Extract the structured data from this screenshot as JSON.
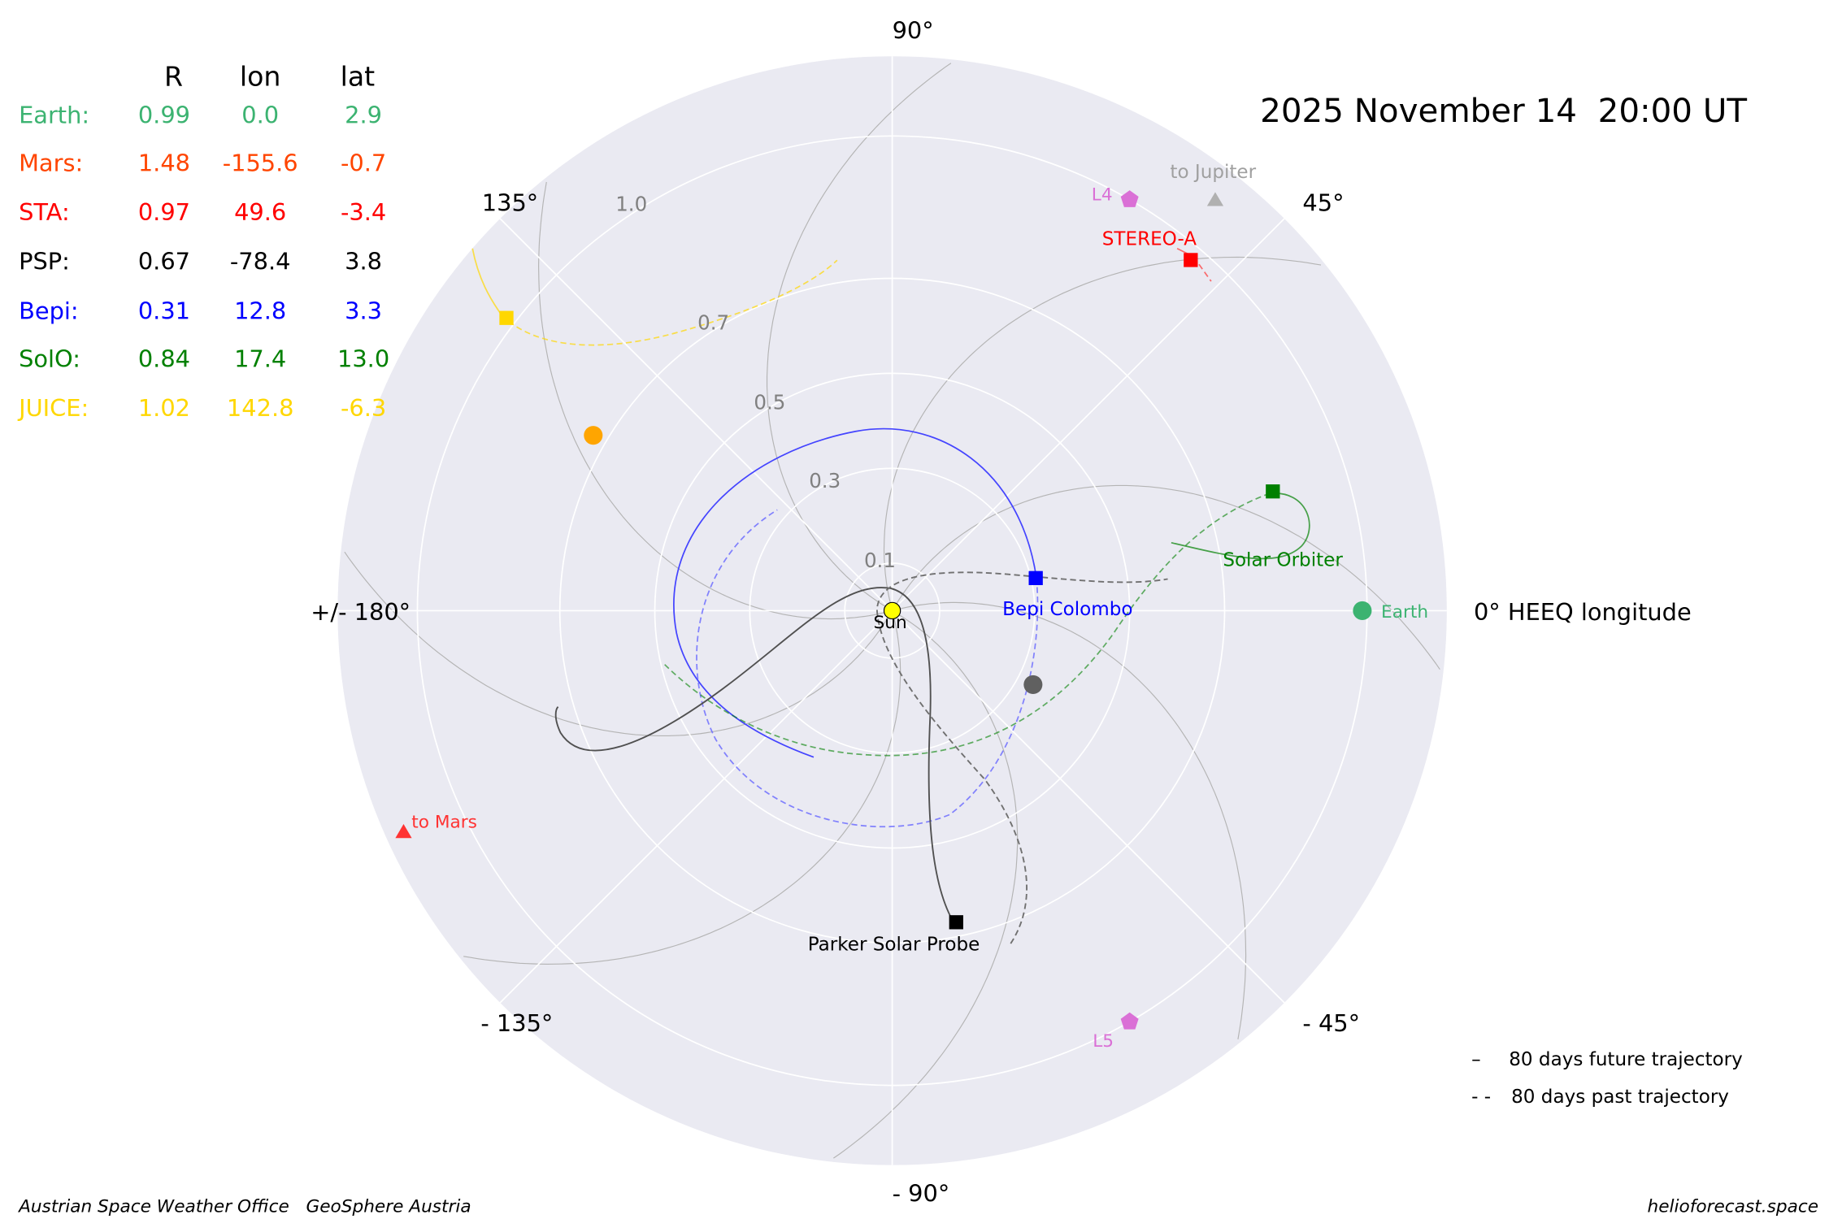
{
  "title": "2025 November 14  20:00 UT",
  "table": {
    "headers": [
      "R",
      "lon",
      "lat"
    ],
    "rows": [
      {
        "name": "Earth:",
        "R": "0.99",
        "lon": "0.0",
        "lat": "2.9",
        "color": "#3cb371"
      },
      {
        "name": "Mars:",
        "R": "1.48",
        "lon": "-155.6",
        "lat": "-0.7",
        "color": "#ff4500"
      },
      {
        "name": "STA:",
        "R": "0.97",
        "lon": "49.6",
        "lat": "-3.4",
        "color": "#ff0000"
      },
      {
        "name": "PSP:",
        "R": "0.67",
        "lon": "-78.4",
        "lat": "3.8",
        "color": "#000000"
      },
      {
        "name": "Bepi:",
        "R": "0.31",
        "lon": "12.8",
        "lat": "3.3",
        "color": "#0000ff"
      },
      {
        "name": "SolO:",
        "R": "0.84",
        "lon": "17.4",
        "lat": "13.0",
        "color": "#008000"
      },
      {
        "name": "JUICE:",
        "R": "1.02",
        "lon": "142.8",
        "lat": "-6.3",
        "color": "#ffd700"
      }
    ]
  },
  "chart_data": {
    "type": "scatter",
    "projection": "polar",
    "title": "2025 November 14  20:00 UT",
    "angle_labels": {
      "a90": "90°",
      "a45": "45°",
      "a0": "0° HEEQ longitude",
      "am45": "- 45°",
      "am90": "- 90°",
      "am135": "- 135°",
      "a180": "+/- 180°",
      "a135": "135°"
    },
    "r_ticks": [
      "0.1",
      "0.3",
      "0.5",
      "0.7",
      "1.0"
    ],
    "r_max": 1.17,
    "grid": true,
    "objects": {
      "sun": {
        "label": "Sun",
        "r": 0,
        "lon": 0,
        "color": "#ffff00"
      },
      "earth": {
        "label": "Earth",
        "r": 0.99,
        "lon": 0.0,
        "color": "#3cb371"
      },
      "sta": {
        "label": "STEREO-A",
        "r": 0.97,
        "lon": 49.6,
        "color": "#ff0000"
      },
      "bepi": {
        "label": "Bepi Colombo",
        "r": 0.31,
        "lon": 12.8,
        "color": "#0000ff"
      },
      "solo": {
        "label": "Solar Orbiter",
        "r": 0.84,
        "lon": 17.4,
        "color": "#008000"
      },
      "psp": {
        "label": "Parker Solar Probe",
        "r": 0.67,
        "lon": -78.4,
        "color": "#000000"
      },
      "juice": {
        "r": 1.02,
        "lon": 142.8,
        "color": "#ffd700"
      },
      "venus": {
        "r": 0.73,
        "lon": 149.6,
        "color": "#ffa500"
      },
      "mercury": {
        "r": 0.335,
        "lon": -27.7,
        "color": "#606060"
      },
      "l4": {
        "label": "L4",
        "r": 1.0,
        "lon": 60,
        "color": "#da70d6"
      },
      "l5": {
        "label": "L5",
        "r": 1.0,
        "lon": -60,
        "color": "#da70d6"
      },
      "mars_dir": {
        "label": "to Mars",
        "r": 1.13,
        "lon": -155.6,
        "color": "#ff3333"
      },
      "jupiter_dir": {
        "label": "to Jupiter",
        "r": 1.1,
        "lon": 51.8,
        "color": "#b0b0b0"
      }
    },
    "legend": {
      "future": "80 days future trajectory",
      "future_marker": "–",
      "past": "80 days past trajectory",
      "past_marker": "- -"
    }
  },
  "footer": {
    "left": "Austrian Space Weather Office   GeoSphere Austria",
    "right": "helioforecast.space"
  }
}
